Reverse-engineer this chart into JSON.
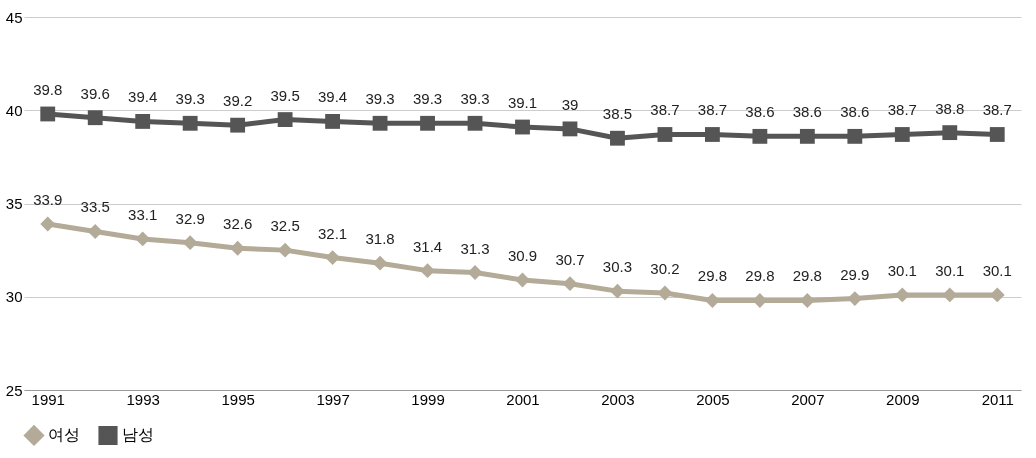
{
  "chart_data": {
    "type": "line",
    "categories": [
      "1991",
      null,
      "1993",
      null,
      "1995",
      null,
      "1997",
      null,
      "1999",
      null,
      "2001",
      null,
      "2003",
      null,
      "2005",
      null,
      "2007",
      null,
      "2009",
      null,
      "2011"
    ],
    "series": [
      {
        "name": "여성",
        "color": "#b3aa98",
        "marker": "diamond",
        "values": [
          33.9,
          33.5,
          33.1,
          32.9,
          32.6,
          32.5,
          32.1,
          31.8,
          31.4,
          31.3,
          30.9,
          30.7,
          30.3,
          30.2,
          29.8,
          29.8,
          29.8,
          29.9,
          30.1,
          30.1,
          30.1
        ]
      },
      {
        "name": "남성",
        "color": "#555555",
        "marker": "square",
        "values": [
          39.8,
          39.6,
          39.4,
          39.3,
          39.2,
          39.5,
          39.4,
          39.3,
          39.3,
          39.3,
          39.1,
          39,
          38.5,
          38.7,
          38.7,
          38.6,
          38.6,
          38.6,
          38.7,
          38.8,
          38.7
        ]
      }
    ],
    "ylim": [
      25,
      45
    ],
    "yticks": [
      25,
      30,
      35,
      40,
      45
    ],
    "grid": "y",
    "legend": "bottom",
    "data_labels": true,
    "line_style": "solid"
  }
}
